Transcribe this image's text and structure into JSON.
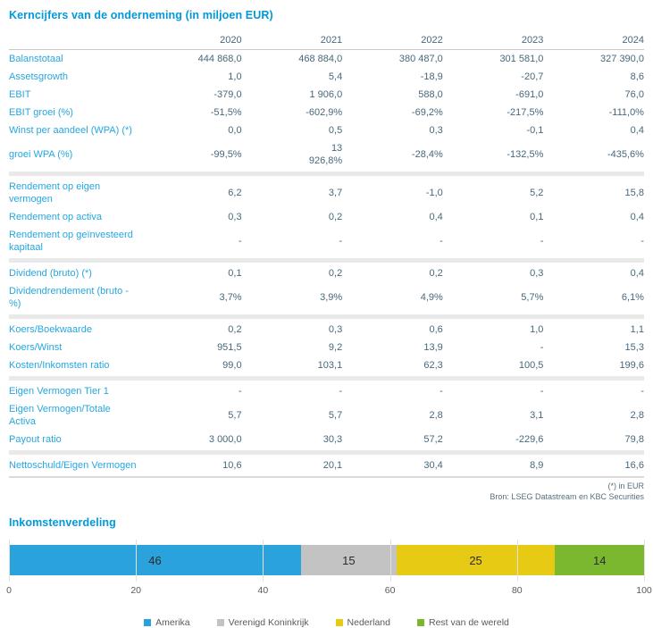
{
  "table": {
    "title": "Kerncijfers van de onderneming (in miljoen EUR)",
    "years": [
      "2020",
      "2021",
      "2022",
      "2023",
      "2024"
    ],
    "sections": [
      {
        "rows": [
          {
            "label": "Balanstotaal",
            "values": [
              "444 868,0",
              "468 884,0",
              "380 487,0",
              "301 581,0",
              "327 390,0"
            ]
          },
          {
            "label": "Assetsgrowth",
            "values": [
              "1,0",
              "5,4",
              "-18,9",
              "-20,7",
              "8,6"
            ]
          },
          {
            "label": "EBIT",
            "values": [
              "-379,0",
              "1 906,0",
              "588,0",
              "-691,0",
              "76,0"
            ]
          },
          {
            "label": "EBIT groei (%)",
            "values": [
              "-51,5%",
              "-602,9%",
              "-69,2%",
              "-217,5%",
              "-111,0%"
            ]
          },
          {
            "label": "Winst per aandeel (WPA) (*)",
            "values": [
              "0,0",
              "0,5",
              "0,3",
              "-0,1",
              "0,4"
            ]
          },
          {
            "label": "groei WPA (%)",
            "values": [
              "-99,5%",
              "13\n926,8%",
              "-28,4%",
              "-132,5%",
              "-435,6%"
            ]
          }
        ]
      },
      {
        "rows": [
          {
            "label": "Rendement op eigen vermogen",
            "values": [
              "6,2",
              "3,7",
              "-1,0",
              "5,2",
              "15,8"
            ]
          },
          {
            "label": "Rendement op activa",
            "values": [
              "0,3",
              "0,2",
              "0,4",
              "0,1",
              "0,4"
            ]
          },
          {
            "label": "Rendement op geïnvesteerd kapitaal",
            "values": [
              "-",
              "-",
              "-",
              "-",
              "-"
            ]
          }
        ]
      },
      {
        "rows": [
          {
            "label": "Dividend (bruto) (*)",
            "values": [
              "0,1",
              "0,2",
              "0,2",
              "0,3",
              "0,4"
            ]
          },
          {
            "label": "Dividendrendement (bruto - %)",
            "values": [
              "3,7%",
              "3,9%",
              "4,9%",
              "5,7%",
              "6,1%"
            ]
          }
        ]
      },
      {
        "rows": [
          {
            "label": "Koers/Boekwaarde",
            "values": [
              "0,2",
              "0,3",
              "0,6",
              "1,0",
              "1,1"
            ]
          },
          {
            "label": "Koers/Winst",
            "values": [
              "951,5",
              "9,2",
              "13,9",
              "-",
              "15,3"
            ]
          },
          {
            "label": "Kosten/Inkomsten ratio",
            "values": [
              "99,0",
              "103,1",
              "62,3",
              "100,5",
              "199,6"
            ]
          }
        ]
      },
      {
        "rows": [
          {
            "label": "Eigen Vermogen Tier 1",
            "values": [
              "-",
              "-",
              "-",
              "-",
              "-"
            ]
          },
          {
            "label": "Eigen Vermogen/Totale Activa",
            "values": [
              "5,7",
              "5,7",
              "2,8",
              "3,1",
              "2,8"
            ]
          },
          {
            "label": "Payout ratio",
            "values": [
              "3 000,0",
              "30,3",
              "57,2",
              "-229,6",
              "79,8"
            ]
          }
        ]
      },
      {
        "rows": [
          {
            "label": "Nettoschuld/Eigen Vermogen",
            "values": [
              "10,6",
              "20,1",
              "30,4",
              "8,9",
              "16,6"
            ]
          }
        ]
      }
    ],
    "footnotes": [
      "(*) in EUR",
      "Bron: LSEG Datastream en KBC Securities"
    ]
  },
  "chart": {
    "title": "Inkomstenverdeling"
  },
  "chart_data": {
    "type": "bar",
    "variant": "horizontal-stacked",
    "title": "Inkomstenverdeling",
    "categories": [
      "Amerika",
      "Verenigd Koninkrijk",
      "Nederland",
      "Rest van de wereld"
    ],
    "values": [
      46,
      15,
      25,
      14
    ],
    "colors": [
      "#2AA2DB",
      "#C3C3C3",
      "#E6CA13",
      "#7CB82F"
    ],
    "xlim": [
      0,
      100
    ],
    "xticks": [
      0,
      20,
      40,
      60,
      80,
      100
    ],
    "grid": true,
    "legend_position": "bottom"
  },
  "theme_colors": {
    "heading_blue": "#0099DB",
    "row_label_blue": "#25A7E0",
    "value_slate": "#48687A",
    "separator_gray": "#E9E9E9"
  }
}
